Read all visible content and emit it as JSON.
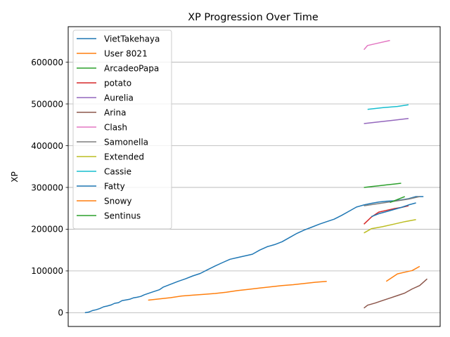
{
  "chart_data": {
    "type": "line",
    "title": "XP Progression Over Time",
    "xlabel": "",
    "ylabel": "XP",
    "xlim": [
      0,
      100
    ],
    "ylim": [
      -33000,
      685000
    ],
    "yticks": [
      0,
      100000,
      200000,
      300000,
      400000,
      500000,
      600000
    ],
    "ytick_labels": [
      "0",
      "100000",
      "200000",
      "300000",
      "400000",
      "500000",
      "600000"
    ],
    "grid": "y",
    "legend": "top-left",
    "series": [
      {
        "name": "VietTakehaya",
        "color": "#1f77b4",
        "x": [
          4.5,
          5.5,
          6.5,
          7.5,
          8.5,
          9.5,
          10.5,
          11.5,
          12.5,
          13.5,
          14.5,
          15.5,
          16.5,
          17.5,
          18.5,
          19.5,
          20.5,
          22.5,
          24.5,
          25.5,
          27.5,
          29.5,
          31.5,
          33.5,
          35.5,
          37.5,
          39.5,
          41.5,
          43.5,
          45.5,
          47.5,
          49.5,
          51.5,
          53.5,
          55.5,
          57.5,
          59.5,
          61.5,
          63.5,
          65.5,
          67.5,
          69.5,
          71.5,
          73.5,
          75.5,
          77.5,
          79.5,
          81.5,
          83.5,
          85.5,
          87.5,
          89.5,
          91.5,
          93.5,
          95.5
        ],
        "y": [
          0,
          1500,
          5000,
          7000,
          10000,
          14000,
          16000,
          18500,
          22500,
          24000,
          29000,
          30500,
          32000,
          35500,
          37000,
          39000,
          43000,
          49000,
          55000,
          61000,
          68000,
          75000,
          81000,
          88000,
          94000,
          103000,
          112000,
          120000,
          128000,
          132000,
          136000,
          140000,
          150000,
          158000,
          163000,
          170000,
          180000,
          190000,
          198000,
          205000,
          212000,
          218000,
          224000,
          233000,
          243000,
          253000,
          258000,
          262000,
          265000,
          267000,
          268000,
          270000,
          273000,
          278000,
          278000
        ]
      },
      {
        "name": "User 8021",
        "color": "#ff7f0e",
        "x": [
          21.5,
          24.5,
          27.5,
          30.5,
          33.5,
          36.5,
          39.5,
          42.5,
          45.5,
          48.5,
          51.5,
          54.5,
          57.5,
          60.5,
          63.5,
          66.5,
          69.5
        ],
        "y": [
          30000,
          33000,
          36000,
          40000,
          42000,
          44000,
          46000,
          49000,
          53000,
          56000,
          59000,
          62000,
          65000,
          67000,
          70000,
          73000,
          75000
        ]
      },
      {
        "name": "ArcadeoPapa",
        "color": "#2ca02c",
        "x": [
          79.5,
          81.5,
          83.5,
          85.5,
          87.5,
          89.5
        ],
        "y": [
          300000,
          302000,
          304000,
          306000,
          308000,
          310000
        ]
      },
      {
        "name": "potato",
        "color": "#d62728",
        "x": [
          79.5,
          81.5,
          83.5,
          85.5,
          87.5,
          89.5,
          91.5
        ],
        "y": [
          212000,
          229000,
          241000,
          245000,
          249000,
          252000,
          256000
        ]
      },
      {
        "name": "Aurelia",
        "color": "#9467bd",
        "x": [
          79.5,
          83.5,
          87.5,
          91.5
        ],
        "y": [
          453000,
          457000,
          461000,
          465000
        ]
      },
      {
        "name": "Arina",
        "color": "#8c564b",
        "x": [
          79.5,
          80.5,
          82.5,
          84.5,
          86.5,
          88.5,
          90.5,
          92.5,
          94.5,
          96.5
        ],
        "y": [
          11000,
          18000,
          23000,
          29000,
          35000,
          41000,
          47000,
          57000,
          65000,
          81000
        ]
      },
      {
        "name": "Clash",
        "color": "#e377c2",
        "x": [
          79.5,
          80.5,
          83.5,
          86.5
        ],
        "y": [
          630000,
          640000,
          646000,
          652000
        ]
      },
      {
        "name": "Samonella",
        "color": "#7f7f7f",
        "x": [
          79.5,
          82.5,
          85.5,
          88.5,
          91.5,
          94.5
        ],
        "y": [
          256000,
          260000,
          264000,
          268000,
          272000,
          278000
        ]
      },
      {
        "name": "Extended",
        "color": "#bcbd22",
        "x": [
          79.5,
          81.5,
          84.5,
          87.5,
          90.5,
          93.5
        ],
        "y": [
          191000,
          201000,
          206000,
          212000,
          218000,
          223000
        ]
      },
      {
        "name": "Cassie",
        "color": "#17becf",
        "x": [
          80.5,
          84.5,
          88.5,
          91.5
        ],
        "y": [
          487000,
          491000,
          494000,
          498000
        ]
      },
      {
        "name": "Fatty",
        "color": "#1f77b4",
        "x": [
          81.5,
          83.5,
          85.5,
          87.5,
          89.5,
          91.5,
          93.5
        ],
        "y": [
          230000,
          237000,
          242000,
          247000,
          252000,
          258000,
          263000
        ]
      },
      {
        "name": "Snowy",
        "color": "#ff7f0e",
        "x": [
          85.5,
          88.5,
          90.5,
          92.5,
          94.5
        ],
        "y": [
          75000,
          93000,
          97000,
          101000,
          111000
        ]
      },
      {
        "name": "Sentinus",
        "color": "#2ca02c",
        "x": [
          86.5,
          88.5,
          90.5
        ],
        "y": [
          264000,
          271000,
          278000
        ]
      }
    ]
  }
}
